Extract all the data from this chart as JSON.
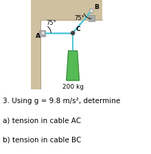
{
  "bg_color": "#ffffff",
  "wall_color": "#cfc0a0",
  "cable_color": "#55c8d8",
  "cable_lw": 1.8,
  "point_A": [
    0.135,
    0.63
  ],
  "point_B": [
    0.68,
    0.88
  ],
  "point_C": [
    0.47,
    0.63
  ],
  "angle_AC_label": "75°",
  "angle_BC_label": "75°",
  "mass_label": "200 kg",
  "label_A": "A",
  "label_B": "B",
  "label_C": "C",
  "text_line1": "3. Using g = 9.8 m/s², determine",
  "text_line2": "a) tension in cable AC",
  "text_line3": "b) tension in cable BC",
  "hook_color": "#55bb55",
  "hook_dark": "#3a8a3a"
}
